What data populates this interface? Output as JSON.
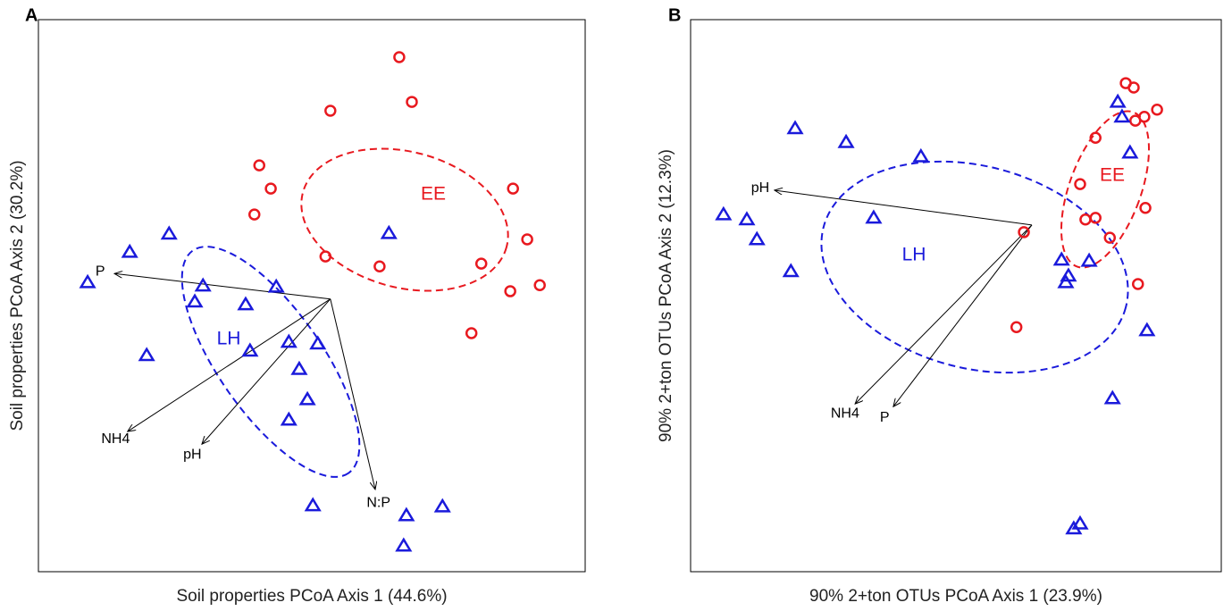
{
  "chart_data": [
    {
      "type": "scatter",
      "panel": "A",
      "x_label": "Soil properties PCoA Axis 1 (44.6%)",
      "y_label": "Soil properties PCoA Axis 2 (30.2%)",
      "xlim": [
        0,
        100
      ],
      "ylim": [
        0,
        100
      ],
      "series": [
        {
          "name": "EE",
          "color": "#e8191f",
          "marker": "circle",
          "x": [
            66.0,
            68.3,
            53.4,
            40.4,
            42.5,
            39.5,
            86.8,
            89.4,
            81.0,
            86.3,
            91.7,
            52.5,
            62.4,
            79.2
          ],
          "values": [
            93.2,
            85.1,
            83.5,
            73.6,
            69.4,
            64.7,
            69.4,
            60.2,
            55.8,
            50.8,
            51.9,
            57.1,
            55.3,
            43.2
          ]
        },
        {
          "name": "LH",
          "color": "#1a1adb",
          "marker": "triangle",
          "x": [
            23.9,
            16.7,
            9.0,
            30.1,
            28.6,
            37.9,
            43.5,
            45.8,
            51.1,
            38.7,
            19.8,
            47.7,
            49.2,
            45.8,
            50.2,
            67.3,
            73.9,
            66.8,
            64.1
          ],
          "values": [
            61.2,
            57.9,
            52.4,
            51.8,
            48.9,
            48.4,
            51.6,
            41.6,
            41.3,
            40.0,
            39.2,
            36.7,
            31.2,
            27.5,
            12.0,
            10.2,
            11.8,
            4.7,
            61.3
          ]
        }
      ],
      "vector_origin": {
        "x": 53.4,
        "y": 49.4
      },
      "vectors": [
        {
          "label": "P",
          "x": 13.9,
          "y": 54.0
        },
        {
          "label": "NH4",
          "x": 16.3,
          "y": 25.4
        },
        {
          "label": "pH",
          "x": 29.9,
          "y": 23.1
        },
        {
          "label": "N:P",
          "x": 61.6,
          "y": 14.9
        }
      ]
    },
    {
      "type": "scatter",
      "panel": "B",
      "x_label": "90% 2+ton OTUs PCoA Axis 1 (23.9%)",
      "y_label": "90% 2+ton OTUs PCoA Axis 2 (12.3%)",
      "xlim": [
        0,
        100
      ],
      "ylim": [
        0,
        100
      ],
      "series": [
        {
          "name": "EE",
          "color": "#e8191f",
          "marker": "circle",
          "x": [
            82.0,
            83.5,
            87.9,
            85.5,
            83.8,
            76.3,
            73.4,
            85.7,
            74.4,
            76.3,
            79.0,
            62.8,
            84.3,
            61.4
          ],
          "values": [
            88.5,
            87.7,
            83.7,
            82.4,
            81.7,
            78.6,
            70.2,
            65.9,
            63.8,
            64.1,
            60.5,
            61.5,
            52.1,
            44.3
          ]
        },
        {
          "name": "LH",
          "color": "#1a1adb",
          "marker": "triangle",
          "x": [
            19.7,
            29.3,
            43.4,
            6.2,
            10.6,
            12.5,
            18.9,
            34.5,
            80.5,
            81.3,
            82.8,
            69.9,
            75.1,
            71.2,
            70.7,
            86.0,
            79.5,
            73.4,
            72.2
          ],
          "values": [
            80.3,
            77.8,
            75.2,
            64.7,
            63.8,
            60.2,
            54.4,
            64.1,
            85.1,
            82.4,
            75.9,
            56.5,
            56.3,
            53.6,
            52.4,
            43.7,
            31.4,
            8.7,
            7.8
          ]
        }
      ],
      "vector_origin": {
        "x": 64.3,
        "y": 62.8
      },
      "vectors": [
        {
          "label": "pH",
          "x": 15.8,
          "y": 69.1
        },
        {
          "label": "NH4",
          "x": 31.0,
          "y": 30.4
        },
        {
          "label": "P",
          "x": 38.2,
          "y": 29.9
        }
      ]
    }
  ]
}
